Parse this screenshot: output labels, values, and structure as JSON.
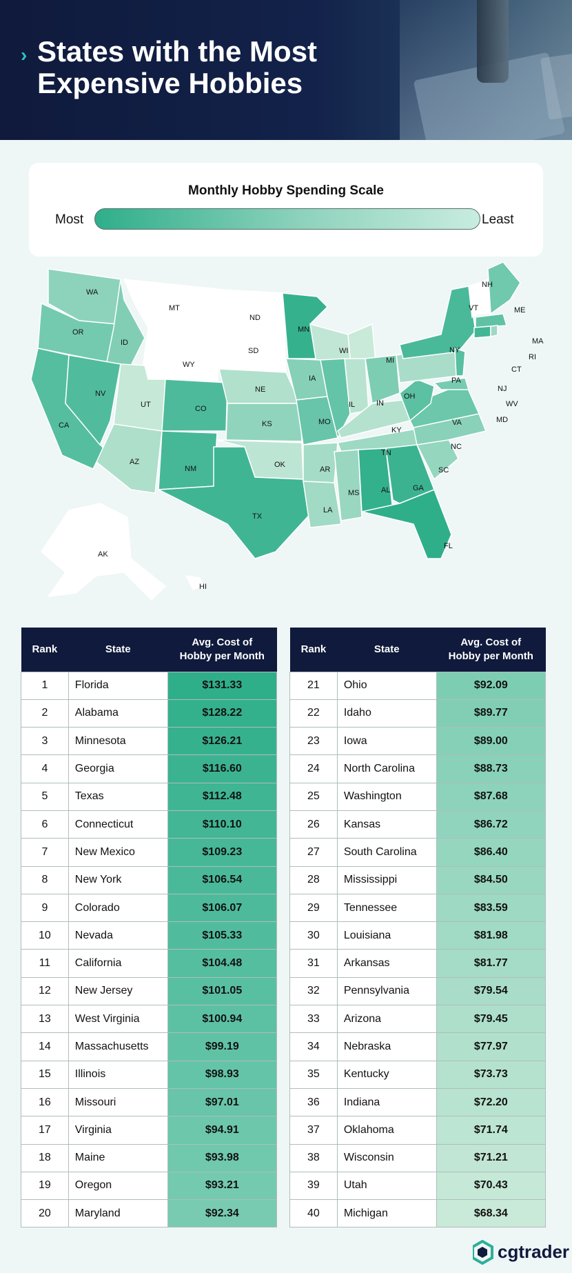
{
  "header": {
    "title": "States with the Most Expensive Hobbies"
  },
  "scale": {
    "title": "Monthly Hobby Spending Scale",
    "most_label": "Most",
    "least_label": "Least"
  },
  "map": {
    "labels": [
      "WA",
      "OR",
      "ID",
      "MT",
      "ND",
      "SD",
      "WY",
      "MN",
      "WI",
      "MI",
      "NY",
      "ME",
      "NH",
      "VT",
      "MA",
      "RI",
      "CT",
      "NJ",
      "PA",
      "WV",
      "MD",
      "CA",
      "NV",
      "UT",
      "CO",
      "NE",
      "IA",
      "IL",
      "IN",
      "OH",
      "KY",
      "VA",
      "KS",
      "MO",
      "AZ",
      "NM",
      "OK",
      "AR",
      "TN",
      "NC",
      "SC",
      "TX",
      "LA",
      "MS",
      "AL",
      "GA",
      "FL",
      "AK",
      "HI"
    ]
  },
  "table_headers": {
    "rank": "Rank",
    "state": "State",
    "cost_line1": "Avg. Cost of",
    "cost_line2": "Hobby per Month"
  },
  "table_left": [
    {
      "rank": "1",
      "state": "Florida",
      "cost": "$131.33",
      "color": "#2fae8a"
    },
    {
      "rank": "2",
      "state": "Alabama",
      "cost": "$128.22",
      "color": "#33b08c"
    },
    {
      "rank": "3",
      "state": "Minnesota",
      "cost": "$126.21",
      "color": "#36b18e"
    },
    {
      "rank": "4",
      "state": "Georgia",
      "cost": "$116.60",
      "color": "#3bb391"
    },
    {
      "rank": "5",
      "state": "Texas",
      "cost": "$112.48",
      "color": "#3fb593"
    },
    {
      "rank": "6",
      "state": "Connecticut",
      "cost": "$110.10",
      "color": "#43b695"
    },
    {
      "rank": "7",
      "state": "New Mexico",
      "cost": "$109.23",
      "color": "#46b897"
    },
    {
      "rank": "8",
      "state": "New York",
      "cost": "$106.54",
      "color": "#4ab999"
    },
    {
      "rank": "9",
      "state": "Colorado",
      "cost": "$106.07",
      "color": "#4dbb9b"
    },
    {
      "rank": "10",
      "state": "Nevada",
      "cost": "$105.33",
      "color": "#51bc9d"
    },
    {
      "rank": "11",
      "state": "California",
      "cost": "$104.48",
      "color": "#55be9f"
    },
    {
      "rank": "12",
      "state": "New Jersey",
      "cost": "$101.05",
      "color": "#59bfa1"
    },
    {
      "rank": "13",
      "state": "West Virginia",
      "cost": "$100.94",
      "color": "#5cc1a3"
    },
    {
      "rank": "14",
      "state": "Massachusetts",
      "cost": "$99.19",
      "color": "#60c2a5"
    },
    {
      "rank": "15",
      "state": "Illinois",
      "cost": "$98.93",
      "color": "#64c4a7"
    },
    {
      "rank": "16",
      "state": "Missouri",
      "cost": "$97.01",
      "color": "#68c5a9"
    },
    {
      "rank": "17",
      "state": "Virginia",
      "cost": "$94.91",
      "color": "#6cc7ab"
    },
    {
      "rank": "18",
      "state": "Maine",
      "cost": "$93.98",
      "color": "#70c8ad"
    },
    {
      "rank": "19",
      "state": "Oregon",
      "cost": "$93.21",
      "color": "#74caaf"
    },
    {
      "rank": "20",
      "state": "Maryland",
      "cost": "$92.34",
      "color": "#78cbb1"
    }
  ],
  "table_right": [
    {
      "rank": "21",
      "state": "Ohio",
      "cost": "$92.09",
      "color": "#7dcdb3"
    },
    {
      "rank": "22",
      "state": "Idaho",
      "cost": "$89.77",
      "color": "#81ceb5"
    },
    {
      "rank": "23",
      "state": "Iowa",
      "cost": "$89.00",
      "color": "#85d0b7"
    },
    {
      "rank": "24",
      "state": "North Carolina",
      "cost": "$88.73",
      "color": "#89d1b9"
    },
    {
      "rank": "25",
      "state": "Washington",
      "cost": "$87.68",
      "color": "#8dd3bb"
    },
    {
      "rank": "26",
      "state": "Kansas",
      "cost": "$86.72",
      "color": "#91d4bd"
    },
    {
      "rank": "27",
      "state": "South Carolina",
      "cost": "$86.40",
      "color": "#95d6bf"
    },
    {
      "rank": "28",
      "state": "Mississippi",
      "cost": "$84.50",
      "color": "#99d7c1"
    },
    {
      "rank": "29",
      "state": "Tennessee",
      "cost": "$83.59",
      "color": "#9dd9c3"
    },
    {
      "rank": "30",
      "state": "Louisiana",
      "cost": "$81.98",
      "color": "#a1dac5"
    },
    {
      "rank": "31",
      "state": "Arkansas",
      "cost": "$81.77",
      "color": "#a5dcc7"
    },
    {
      "rank": "32",
      "state": "Pennsylvania",
      "cost": "$79.54",
      "color": "#a9ddc9"
    },
    {
      "rank": "33",
      "state": "Arizona",
      "cost": "$79.45",
      "color": "#addfcb"
    },
    {
      "rank": "34",
      "state": "Nebraska",
      "cost": "$77.97",
      "color": "#b1e0cd"
    },
    {
      "rank": "35",
      "state": "Kentucky",
      "cost": "$73.73",
      "color": "#b5e2cf"
    },
    {
      "rank": "36",
      "state": "Indiana",
      "cost": "$72.20",
      "color": "#b9e3d1"
    },
    {
      "rank": "37",
      "state": "Oklahoma",
      "cost": "$71.74",
      "color": "#bde5d3"
    },
    {
      "rank": "38",
      "state": "Wisconsin",
      "cost": "$71.21",
      "color": "#c1e6d5"
    },
    {
      "rank": "39",
      "state": "Utah",
      "cost": "$70.43",
      "color": "#c5e8d7"
    },
    {
      "rank": "40",
      "state": "Michigan",
      "cost": "$68.34",
      "color": "#c9e9d9"
    }
  ],
  "logo": {
    "text": "cgtrader"
  }
}
